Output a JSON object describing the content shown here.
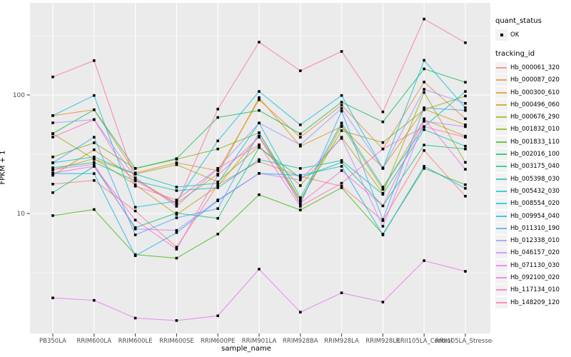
{
  "chart_data": {
    "type": "line",
    "title": "",
    "xlabel": "sample_name",
    "ylabel": "FPKM + 1",
    "yscale": "log10",
    "yticks": [
      10,
      100
    ],
    "minor_gridlines": [
      3.1623,
      31.623,
      316.23
    ],
    "grid": true,
    "legend_position": "right",
    "categories": [
      "PB350LA",
      "RRIM600LA",
      "RRIM600LE",
      "RRIM600SE",
      "RRIM600PE",
      "RRIM901LA",
      "RRIM928BA",
      "RRIM928LA",
      "RRIM928LE",
      "RRII105LA_Control",
      "RRII105LA_Stressed"
    ],
    "legend": {
      "quant_status_title": "quant_status",
      "quant_status_items": [
        "OK"
      ],
      "tracking_id_title": "tracking_id"
    },
    "series": [
      {
        "name": "Hb_000061_320",
        "color": "#F8766D",
        "values": [
          17.7,
          19,
          10.5,
          5.2,
          17.5,
          27.5,
          20.5,
          17,
          8.7,
          34,
          14
        ]
      },
      {
        "name": "Hb_000087_020",
        "color": "#EA8331",
        "values": [
          67,
          75,
          22,
          26.8,
          23,
          91,
          44,
          82,
          35,
          128.5,
          63
        ]
      },
      {
        "name": "Hb_000300_610",
        "color": "#D89000",
        "values": [
          21,
          34.5,
          19.5,
          12.2,
          21.5,
          95,
          37,
          54,
          24.3,
          76,
          56
        ]
      },
      {
        "name": "Hb_000496_060",
        "color": "#C09B00",
        "values": [
          23.3,
          29,
          17.5,
          9.8,
          17,
          45,
          12.8,
          55,
          16,
          62,
          45
        ]
      },
      {
        "name": "Hb_000676_290",
        "color": "#A3A500",
        "values": [
          47,
          28.7,
          21.5,
          25.8,
          18.5,
          37,
          17.2,
          44,
          14.8,
          105,
          27
        ]
      },
      {
        "name": "Hb_001832_010",
        "color": "#7CAE00",
        "values": [
          30,
          39.5,
          24,
          28.7,
          35,
          48,
          13,
          50,
          39.7,
          75,
          98
        ]
      },
      {
        "name": "Hb_001833_110",
        "color": "#39B600",
        "values": [
          9.6,
          10.8,
          4.5,
          4.2,
          6.7,
          14.4,
          10.7,
          16.5,
          6.7,
          24,
          17.5
        ]
      },
      {
        "name": "Hb_002016_100",
        "color": "#00BB4E",
        "values": [
          47.3,
          75,
          24,
          29,
          64.6,
          74,
          47,
          87,
          59.3,
          166,
          128
        ]
      },
      {
        "name": "Hb_003175_040",
        "color": "#00BF7D",
        "values": [
          15,
          25,
          7.6,
          10.1,
          9.1,
          36,
          20,
          27,
          11.6,
          37.8,
          35
        ]
      },
      {
        "name": "Hb_005398_030",
        "color": "#00C1A3",
        "values": [
          24.3,
          27,
          18.8,
          15.6,
          16.5,
          28.5,
          24,
          28,
          14.5,
          51,
          37
        ]
      },
      {
        "name": "Hb_005432_030",
        "color": "#00BFC4",
        "values": [
          26.8,
          30,
          21.5,
          16.7,
          18,
          58,
          13.6,
          58,
          16.7,
          54,
          107
        ]
      },
      {
        "name": "Hb_008554_020",
        "color": "#00BAE0",
        "values": [
          67,
          99,
          11.3,
          12.7,
          41,
          107,
          56,
          99,
          24,
          196,
          78
        ]
      },
      {
        "name": "Hb_009954_040",
        "color": "#00B0F6",
        "values": [
          21.7,
          21.7,
          4.4,
          6.9,
          12.8,
          21.8,
          21,
          25,
          6.6,
          25,
          16.3
        ]
      },
      {
        "name": "Hb_011310_190",
        "color": "#35A2FF",
        "values": [
          26.8,
          44,
          6.6,
          9.2,
          11,
          48,
          12,
          73,
          8.9,
          78,
          74
        ]
      },
      {
        "name": "Hb_012338_010",
        "color": "#9590FF",
        "values": [
          58.2,
          62,
          20,
          11.5,
          24,
          58,
          38,
          77,
          24,
          111.6,
          85
        ]
      },
      {
        "name": "Hb_046157_020",
        "color": "#C77CFF",
        "values": [
          23.5,
          26,
          7.4,
          7.2,
          13,
          21.8,
          19.2,
          43,
          7.8,
          60,
          54
        ]
      },
      {
        "name": "Hb_071130_030",
        "color": "#E76BF3",
        "values": [
          1.94,
          1.85,
          1.31,
          1.25,
          1.37,
          3.39,
          1.47,
          2.14,
          1.79,
          4.0,
          3.25
        ]
      },
      {
        "name": "Hb_092100_020",
        "color": "#FA62DB",
        "values": [
          22,
          25,
          8.8,
          5.0,
          21,
          44,
          12.2,
          23,
          11.6,
          63,
          23.6
        ]
      },
      {
        "name": "Hb_117134_010",
        "color": "#FF62BC",
        "values": [
          44.1,
          62,
          17,
          13,
          24,
          38,
          11.5,
          18,
          35,
          54,
          44
        ]
      },
      {
        "name": "Hb_148209_120",
        "color": "#FF6A98",
        "values": [
          142,
          195,
          19,
          12,
          76,
          279,
          160,
          233,
          72,
          437,
          276
        ]
      }
    ]
  },
  "colors": {
    "panel_bg": "#EBEBEB",
    "gridline": "#FFFFFF",
    "point": "#000000",
    "axis_text": "#4D4D4D",
    "tick_mark": "#333333",
    "legend_key_bg": "#F2F2F2"
  }
}
